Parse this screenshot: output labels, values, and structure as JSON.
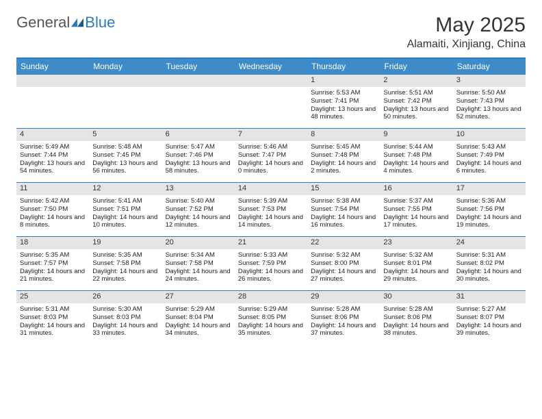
{
  "logo": {
    "part1": "General",
    "part2": "Blue"
  },
  "header": {
    "title": "May 2025",
    "location": "Alamaiti, Xinjiang, China"
  },
  "colors": {
    "brand_blue": "#2b7bbf",
    "header_bar": "#3d8bc9",
    "header_text": "#ffffff",
    "border_blue": "#2b7bbf",
    "daynum_bg": "#e5e5e5",
    "text": "#222222"
  },
  "dayNames": [
    "Sunday",
    "Monday",
    "Tuesday",
    "Wednesday",
    "Thursday",
    "Friday",
    "Saturday"
  ],
  "weeks": [
    [
      null,
      null,
      null,
      null,
      {
        "n": "1",
        "sr": "Sunrise: 5:53 AM",
        "ss": "Sunset: 7:41 PM",
        "dl": "Daylight: 13 hours and 48 minutes."
      },
      {
        "n": "2",
        "sr": "Sunrise: 5:51 AM",
        "ss": "Sunset: 7:42 PM",
        "dl": "Daylight: 13 hours and 50 minutes."
      },
      {
        "n": "3",
        "sr": "Sunrise: 5:50 AM",
        "ss": "Sunset: 7:43 PM",
        "dl": "Daylight: 13 hours and 52 minutes."
      }
    ],
    [
      {
        "n": "4",
        "sr": "Sunrise: 5:49 AM",
        "ss": "Sunset: 7:44 PM",
        "dl": "Daylight: 13 hours and 54 minutes."
      },
      {
        "n": "5",
        "sr": "Sunrise: 5:48 AM",
        "ss": "Sunset: 7:45 PM",
        "dl": "Daylight: 13 hours and 56 minutes."
      },
      {
        "n": "6",
        "sr": "Sunrise: 5:47 AM",
        "ss": "Sunset: 7:46 PM",
        "dl": "Daylight: 13 hours and 58 minutes."
      },
      {
        "n": "7",
        "sr": "Sunrise: 5:46 AM",
        "ss": "Sunset: 7:47 PM",
        "dl": "Daylight: 14 hours and 0 minutes."
      },
      {
        "n": "8",
        "sr": "Sunrise: 5:45 AM",
        "ss": "Sunset: 7:48 PM",
        "dl": "Daylight: 14 hours and 2 minutes."
      },
      {
        "n": "9",
        "sr": "Sunrise: 5:44 AM",
        "ss": "Sunset: 7:48 PM",
        "dl": "Daylight: 14 hours and 4 minutes."
      },
      {
        "n": "10",
        "sr": "Sunrise: 5:43 AM",
        "ss": "Sunset: 7:49 PM",
        "dl": "Daylight: 14 hours and 6 minutes."
      }
    ],
    [
      {
        "n": "11",
        "sr": "Sunrise: 5:42 AM",
        "ss": "Sunset: 7:50 PM",
        "dl": "Daylight: 14 hours and 8 minutes."
      },
      {
        "n": "12",
        "sr": "Sunrise: 5:41 AM",
        "ss": "Sunset: 7:51 PM",
        "dl": "Daylight: 14 hours and 10 minutes."
      },
      {
        "n": "13",
        "sr": "Sunrise: 5:40 AM",
        "ss": "Sunset: 7:52 PM",
        "dl": "Daylight: 14 hours and 12 minutes."
      },
      {
        "n": "14",
        "sr": "Sunrise: 5:39 AM",
        "ss": "Sunset: 7:53 PM",
        "dl": "Daylight: 14 hours and 14 minutes."
      },
      {
        "n": "15",
        "sr": "Sunrise: 5:38 AM",
        "ss": "Sunset: 7:54 PM",
        "dl": "Daylight: 14 hours and 16 minutes."
      },
      {
        "n": "16",
        "sr": "Sunrise: 5:37 AM",
        "ss": "Sunset: 7:55 PM",
        "dl": "Daylight: 14 hours and 17 minutes."
      },
      {
        "n": "17",
        "sr": "Sunrise: 5:36 AM",
        "ss": "Sunset: 7:56 PM",
        "dl": "Daylight: 14 hours and 19 minutes."
      }
    ],
    [
      {
        "n": "18",
        "sr": "Sunrise: 5:35 AM",
        "ss": "Sunset: 7:57 PM",
        "dl": "Daylight: 14 hours and 21 minutes."
      },
      {
        "n": "19",
        "sr": "Sunrise: 5:35 AM",
        "ss": "Sunset: 7:58 PM",
        "dl": "Daylight: 14 hours and 22 minutes."
      },
      {
        "n": "20",
        "sr": "Sunrise: 5:34 AM",
        "ss": "Sunset: 7:58 PM",
        "dl": "Daylight: 14 hours and 24 minutes."
      },
      {
        "n": "21",
        "sr": "Sunrise: 5:33 AM",
        "ss": "Sunset: 7:59 PM",
        "dl": "Daylight: 14 hours and 26 minutes."
      },
      {
        "n": "22",
        "sr": "Sunrise: 5:32 AM",
        "ss": "Sunset: 8:00 PM",
        "dl": "Daylight: 14 hours and 27 minutes."
      },
      {
        "n": "23",
        "sr": "Sunrise: 5:32 AM",
        "ss": "Sunset: 8:01 PM",
        "dl": "Daylight: 14 hours and 29 minutes."
      },
      {
        "n": "24",
        "sr": "Sunrise: 5:31 AM",
        "ss": "Sunset: 8:02 PM",
        "dl": "Daylight: 14 hours and 30 minutes."
      }
    ],
    [
      {
        "n": "25",
        "sr": "Sunrise: 5:31 AM",
        "ss": "Sunset: 8:03 PM",
        "dl": "Daylight: 14 hours and 31 minutes."
      },
      {
        "n": "26",
        "sr": "Sunrise: 5:30 AM",
        "ss": "Sunset: 8:03 PM",
        "dl": "Daylight: 14 hours and 33 minutes."
      },
      {
        "n": "27",
        "sr": "Sunrise: 5:29 AM",
        "ss": "Sunset: 8:04 PM",
        "dl": "Daylight: 14 hours and 34 minutes."
      },
      {
        "n": "28",
        "sr": "Sunrise: 5:29 AM",
        "ss": "Sunset: 8:05 PM",
        "dl": "Daylight: 14 hours and 35 minutes."
      },
      {
        "n": "29",
        "sr": "Sunrise: 5:28 AM",
        "ss": "Sunset: 8:06 PM",
        "dl": "Daylight: 14 hours and 37 minutes."
      },
      {
        "n": "30",
        "sr": "Sunrise: 5:28 AM",
        "ss": "Sunset: 8:06 PM",
        "dl": "Daylight: 14 hours and 38 minutes."
      },
      {
        "n": "31",
        "sr": "Sunrise: 5:27 AM",
        "ss": "Sunset: 8:07 PM",
        "dl": "Daylight: 14 hours and 39 minutes."
      }
    ]
  ]
}
